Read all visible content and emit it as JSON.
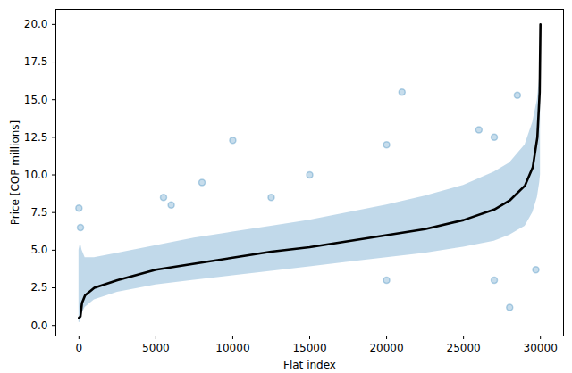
{
  "chart_data": {
    "type": "line",
    "xlabel": "Flat index",
    "ylabel": "Price [COP millions]",
    "xlim": [
      -1500,
      31500
    ],
    "ylim": [
      -0.7,
      21.0
    ],
    "xticks": [
      0,
      5000,
      10000,
      15000,
      20000,
      25000,
      30000
    ],
    "yticks": [
      {
        "value": 0,
        "label": "0.0"
      },
      {
        "value": 2.5,
        "label": "2.5"
      },
      {
        "value": 5,
        "label": "5.0"
      },
      {
        "value": 7.5,
        "label": "7.5"
      },
      {
        "value": 10,
        "label": "10.0"
      },
      {
        "value": 12.5,
        "label": "12.5"
      },
      {
        "value": 15,
        "label": "15.0"
      },
      {
        "value": 17.5,
        "label": "17.5"
      },
      {
        "value": 20,
        "label": "20.0"
      }
    ],
    "grid": false,
    "series": [
      {
        "type": "area",
        "color": "#1f77b4",
        "x": [
          0,
          100,
          200,
          400,
          1000,
          2500,
          5000,
          7500,
          10000,
          12500,
          15000,
          17500,
          20000,
          22500,
          25000,
          27000,
          28000,
          29000,
          29500,
          29800,
          29950,
          30000
        ],
        "lower": [
          0.2,
          0.2,
          0.8,
          1.2,
          1.7,
          2.2,
          2.7,
          3.0,
          3.3,
          3.6,
          3.9,
          4.2,
          4.5,
          4.8,
          5.2,
          5.6,
          6.0,
          6.6,
          7.5,
          8.5,
          9.5,
          10.0
        ],
        "upper": [
          5.0,
          5.5,
          5.0,
          4.5,
          4.5,
          4.8,
          5.3,
          5.8,
          6.2,
          6.6,
          7.0,
          7.5,
          8.0,
          8.6,
          9.3,
          10.2,
          10.8,
          12.0,
          13.5,
          15.0,
          16.5,
          20.0
        ]
      },
      {
        "type": "scatter",
        "color": "#1f77b4",
        "marker": "circle",
        "x": [
          0,
          100,
          5500,
          6000,
          8000,
          10000,
          12500,
          15000,
          20000,
          21000,
          26000,
          27000,
          28500,
          20000,
          28000,
          29700,
          27000
        ],
        "values": [
          7.8,
          6.5,
          8.5,
          8.0,
          9.5,
          12.3,
          8.5,
          10.0,
          12.0,
          15.5,
          13.0,
          12.5,
          15.3,
          3.0,
          1.2,
          3.7,
          3.0
        ]
      },
      {
        "type": "line",
        "color": "#000000",
        "line_style": "solid",
        "x": [
          0,
          100,
          200,
          400,
          1000,
          2500,
          5000,
          7500,
          10000,
          12500,
          15000,
          17500,
          20000,
          22500,
          25000,
          27000,
          28000,
          29000,
          29500,
          29800,
          29950,
          30000
        ],
        "values": [
          0.5,
          0.6,
          1.5,
          2.0,
          2.5,
          3.0,
          3.7,
          4.1,
          4.5,
          4.9,
          5.2,
          5.6,
          6.0,
          6.4,
          7.0,
          7.7,
          8.3,
          9.3,
          10.5,
          12.5,
          15.5,
          20.0
        ]
      }
    ]
  }
}
